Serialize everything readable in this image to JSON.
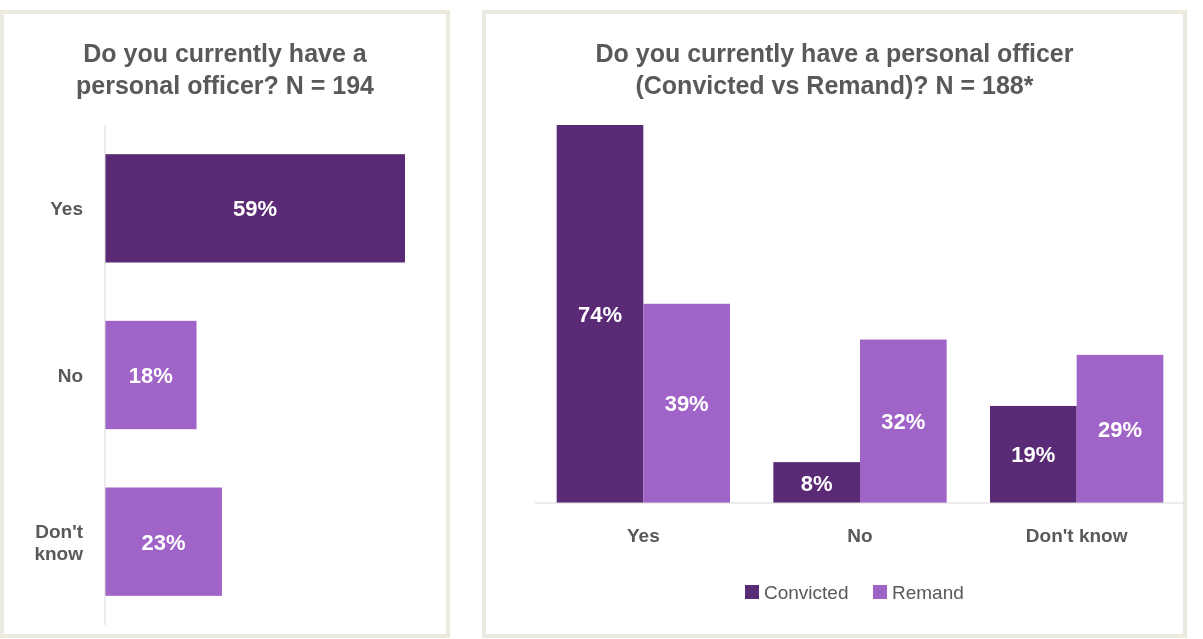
{
  "chart_data": [
    {
      "type": "bar",
      "orientation": "horizontal",
      "title": "Do you currently have a personal officer? N = 194",
      "categories": [
        "Yes",
        "No",
        "Don't know"
      ],
      "values": [
        59,
        18,
        23
      ],
      "value_labels": [
        "59%",
        "18%",
        "23%"
      ],
      "colors": [
        "#5b2a76",
        "#a064c8",
        "#a064c8"
      ]
    },
    {
      "type": "bar",
      "title": "Do you currently have a personal officer (Convicted vs Remand)? N = 188*",
      "categories": [
        "Yes",
        "No",
        "Don't know"
      ],
      "series": [
        {
          "name": "Convicted",
          "color": "#5b2a76",
          "values": [
            74,
            8,
            19
          ],
          "value_labels": [
            "74%",
            "8%",
            "19%"
          ]
        },
        {
          "name": "Remand",
          "color": "#a064c8",
          "values": [
            39,
            32,
            29
          ],
          "value_labels": [
            "39%",
            "32%",
            "29%"
          ]
        }
      ],
      "legend": "bottom"
    }
  ]
}
